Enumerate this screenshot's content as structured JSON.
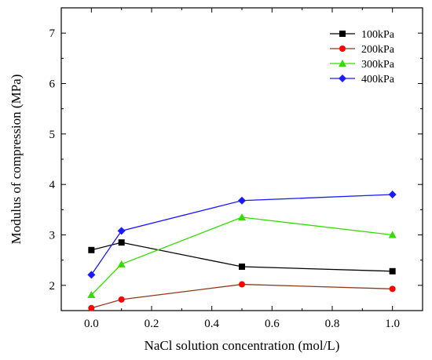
{
  "chart_data": {
    "type": "line",
    "title": "",
    "xlabel": "NaCl solution concentration (mol/L)",
    "ylabel": "Modulus of compression (MPa)",
    "xlim": [
      -0.1,
      1.1
    ],
    "ylim": [
      1.5,
      7.5
    ],
    "x_ticks": [
      0.0,
      0.2,
      0.4,
      0.6,
      0.8,
      1.0
    ],
    "x_tick_labels": [
      "0.0",
      "0.2",
      "0.4",
      "0.6",
      "0.8",
      "1.0"
    ],
    "y_ticks": [
      2,
      3,
      4,
      5,
      6,
      7
    ],
    "y_tick_labels": [
      "2",
      "3",
      "4",
      "5",
      "6",
      "7"
    ],
    "grid": false,
    "legend_position": "top-right",
    "x": [
      0.0,
      0.1,
      0.5,
      1.0
    ],
    "series": [
      {
        "name": "100kPa",
        "values": [
          2.7,
          2.85,
          2.37,
          2.28
        ],
        "color": "#000000",
        "marker": "square"
      },
      {
        "name": "200kPa",
        "values": [
          1.55,
          1.72,
          2.02,
          1.93
        ],
        "color": "#8B3A1A",
        "marker": "circle",
        "marker_color": "#ff0000"
      },
      {
        "name": "300kPa",
        "values": [
          1.81,
          2.42,
          3.35,
          3.0
        ],
        "color": "#33dd00",
        "marker": "triangle"
      },
      {
        "name": "400kPa",
        "values": [
          2.21,
          3.08,
          3.68,
          3.8
        ],
        "color": "#1a1aff",
        "marker": "diamond"
      }
    ]
  }
}
